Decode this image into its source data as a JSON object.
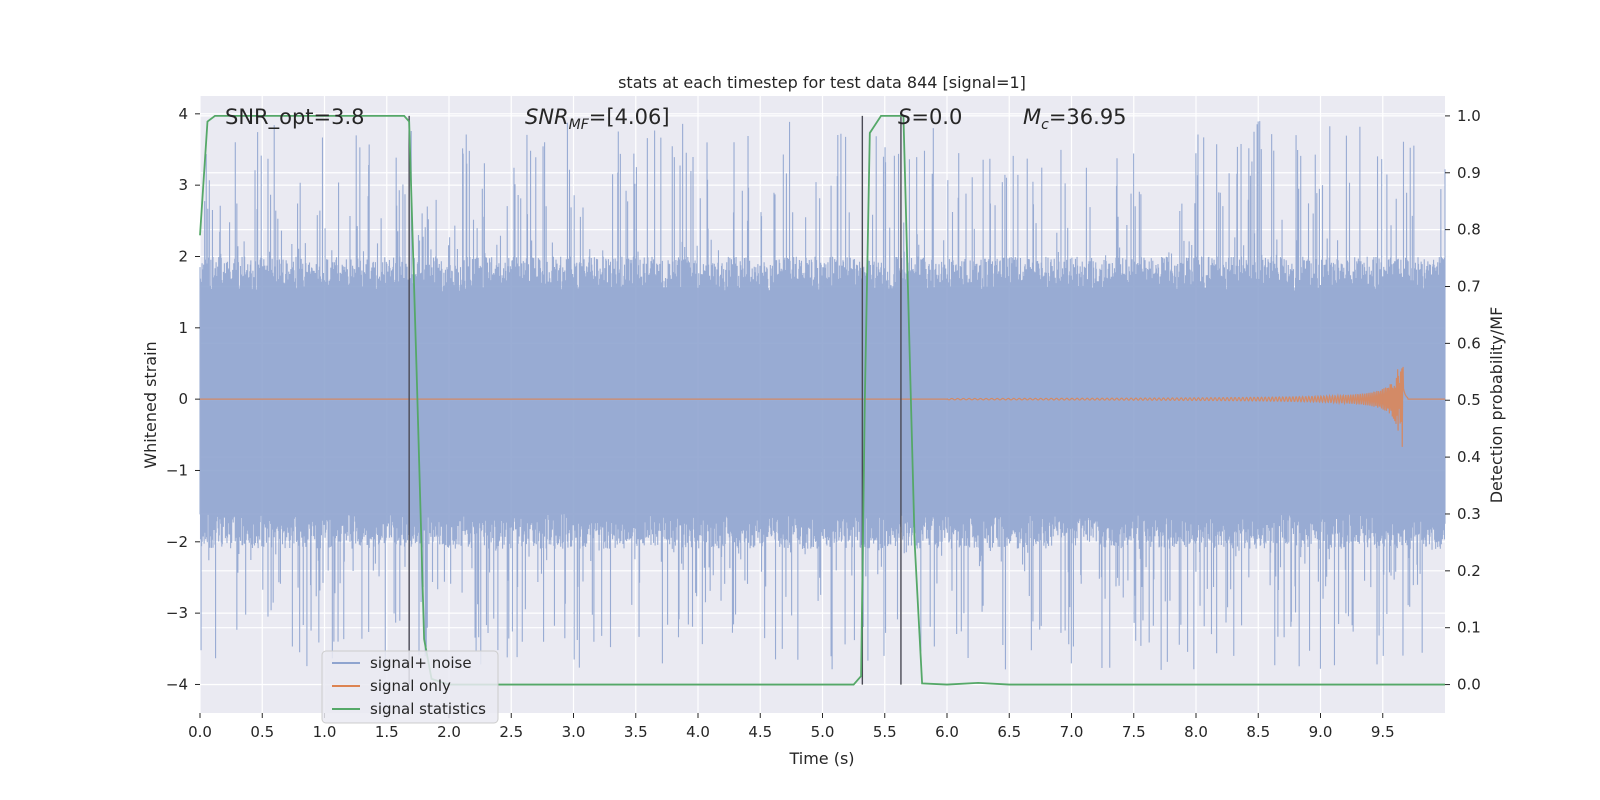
{
  "chart_data": {
    "type": "line",
    "title": "stats at each timestep for test data 844 [signal=1]",
    "xlabel": "Time (s)",
    "ylabel": "Whitened strain",
    "ylabel_right": "Detection probability/MF",
    "xlim": [
      0.0,
      10.0
    ],
    "ylim": [
      -4.4,
      4.25
    ],
    "ylim_right": [
      -0.05,
      1.035
    ],
    "x_ticks": [
      "0.0",
      "0.5",
      "1.0",
      "1.5",
      "2.0",
      "2.5",
      "3.0",
      "3.5",
      "4.0",
      "4.5",
      "5.0",
      "5.5",
      "6.0",
      "6.5",
      "7.0",
      "7.5",
      "8.0",
      "8.5",
      "9.0",
      "9.5"
    ],
    "y_ticks": [
      "−4",
      "−3",
      "−2",
      "−1",
      "0",
      "1",
      "2",
      "3",
      "4"
    ],
    "y_ticks_right": [
      "0.0",
      "0.1",
      "0.2",
      "0.3",
      "0.4",
      "0.5",
      "0.6",
      "0.7",
      "0.8",
      "0.9",
      "1.0"
    ],
    "grid": true,
    "legend_position": "lower-left",
    "annotations": {
      "snr_opt": "SNR_opt=3.8",
      "snr_mf_main": "SNR",
      "snr_mf_sub": "MF",
      "snr_mf_value": "=[4.06]",
      "s_var": "S",
      "s_value": "=0.0",
      "mc_main": "M",
      "mc_sub": "c",
      "mc_value": "=36.95"
    },
    "vertical_lines_x": [
      1.68,
      5.32,
      5.63
    ],
    "series": [
      {
        "name": "signal+ noise",
        "color": "#8fa4cf",
        "description_visible": "dense whitened noise between about -3.8 and 3.9",
        "envelope": {
          "core_low": -1.6,
          "core_high": 1.5,
          "peak_low": -3.8,
          "peak_high": 3.9
        }
      },
      {
        "name": "signal only",
        "color": "#dd8452",
        "chirp": {
          "start_x": 6.0,
          "merger_x": 9.65,
          "peak_amplitude": 1.0
        }
      },
      {
        "name": "signal statistics",
        "color": "#55a868",
        "axis": "right",
        "x": [
          0.0,
          0.06,
          0.12,
          0.5,
          1.0,
          1.5,
          1.64,
          1.68,
          1.74,
          1.8,
          1.86,
          2.0,
          3.0,
          4.0,
          5.0,
          5.25,
          5.31,
          5.34,
          5.38,
          5.47,
          5.6,
          5.65,
          5.74,
          5.8,
          6.0,
          6.25,
          6.5,
          7.0,
          8.0,
          9.0,
          10.0
        ],
        "y": [
          0.79,
          0.99,
          1.0,
          1.0,
          1.0,
          1.0,
          1.0,
          0.99,
          0.55,
          0.08,
          0.01,
          0.0,
          0.0,
          0.0,
          0.0,
          0.0,
          0.015,
          0.5,
          0.97,
          1.0,
          1.0,
          1.0,
          0.25,
          0.002,
          0.0,
          0.003,
          0.0,
          0.0,
          0.0,
          0.0,
          0.0
        ]
      }
    ]
  }
}
